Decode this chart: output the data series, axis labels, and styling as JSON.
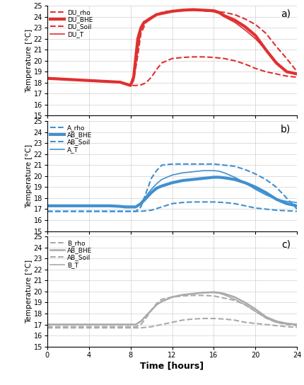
{
  "xlabel": "Time [hours]",
  "ylabel": "Temperature [°C]",
  "xlim": [
    0,
    24
  ],
  "ylim": [
    15,
    25
  ],
  "xticks": [
    0,
    4,
    8,
    12,
    16,
    20,
    24
  ],
  "yticks": [
    15,
    16,
    17,
    18,
    19,
    20,
    21,
    22,
    23,
    24,
    25
  ],
  "red_color": "#e03030",
  "blue_color": "#4090d0",
  "gray_color": "#aaaaaa",
  "panel_a": {
    "DU_rho": {
      "x": [
        0,
        1,
        2,
        3,
        4,
        5,
        6,
        7,
        7.5,
        8,
        8.3,
        8.7,
        9.0,
        9.5,
        10,
        10.5,
        11,
        11.5,
        12,
        13,
        14,
        15,
        16,
        16.5,
        17,
        18,
        19,
        20,
        21,
        22,
        23,
        24
      ],
      "y": [
        18.4,
        18.35,
        18.3,
        18.25,
        18.2,
        18.15,
        18.1,
        18.05,
        17.9,
        17.75,
        18.2,
        20.5,
        22.5,
        23.5,
        23.9,
        24.2,
        24.4,
        24.5,
        24.5,
        24.55,
        24.6,
        24.55,
        24.5,
        24.45,
        24.4,
        24.2,
        23.8,
        23.3,
        22.5,
        21.3,
        20.2,
        19.0
      ],
      "linestyle": "--",
      "linewidth": 1.5
    },
    "DU_BHE": {
      "x": [
        0,
        1,
        2,
        3,
        4,
        5,
        6,
        7,
        7.5,
        8,
        8.3,
        8.7,
        9.0,
        9.3,
        9.7,
        10,
        10.5,
        11,
        11.5,
        12,
        13,
        14,
        15,
        16,
        16.5,
        17,
        18,
        19,
        20,
        21,
        22,
        23,
        24
      ],
      "y": [
        18.4,
        18.35,
        18.3,
        18.25,
        18.2,
        18.15,
        18.1,
        18.05,
        17.9,
        17.75,
        18.5,
        22.0,
        23.0,
        23.5,
        23.7,
        23.9,
        24.2,
        24.3,
        24.4,
        24.5,
        24.6,
        24.65,
        24.6,
        24.55,
        24.4,
        24.1,
        23.7,
        23.1,
        22.3,
        21.0,
        19.8,
        19.0,
        18.8
      ],
      "linestyle": "-",
      "linewidth": 3.0
    },
    "DU_Soil": {
      "x": [
        0,
        1,
        2,
        3,
        4,
        5,
        6,
        7,
        7.5,
        8,
        8.5,
        9,
        9.5,
        10,
        10.5,
        11,
        12,
        13,
        14,
        15,
        16,
        17,
        18,
        19,
        20,
        21,
        22,
        23,
        24
      ],
      "y": [
        18.4,
        18.35,
        18.3,
        18.25,
        18.2,
        18.15,
        18.1,
        18.05,
        17.9,
        17.75,
        17.75,
        17.8,
        18.0,
        18.5,
        19.2,
        19.8,
        20.2,
        20.3,
        20.35,
        20.35,
        20.3,
        20.2,
        20.0,
        19.7,
        19.3,
        19.0,
        18.8,
        18.6,
        18.5
      ],
      "linestyle": "--",
      "linewidth": 1.5
    },
    "DU_T": {
      "x": [
        0,
        1,
        2,
        3,
        4,
        5,
        6,
        7,
        7.5,
        8,
        8.3,
        8.7,
        9.0,
        9.5,
        10,
        10.5,
        11,
        11.5,
        12,
        13,
        14,
        15,
        16,
        16.5,
        17,
        18,
        19,
        20,
        21,
        22,
        23,
        24
      ],
      "y": [
        18.4,
        18.35,
        18.3,
        18.25,
        18.2,
        18.15,
        18.1,
        18.05,
        17.9,
        17.75,
        18.3,
        21.0,
        22.8,
        23.7,
        24.0,
        24.2,
        24.35,
        24.45,
        24.5,
        24.55,
        24.6,
        24.55,
        24.45,
        24.3,
        24.0,
        23.5,
        22.8,
        22.0,
        21.0,
        19.9,
        19.0,
        18.8
      ],
      "linestyle": "-",
      "linewidth": 1.2
    },
    "legend_labels": [
      "DU_rho",
      "DU_BHE",
      "DU_Soil",
      "DU_T"
    ]
  },
  "panel_b": {
    "A_rho": {
      "x": [
        0,
        1,
        2,
        3,
        4,
        5,
        6,
        7,
        7.5,
        8,
        8.5,
        9,
        9.5,
        10,
        10.5,
        11,
        12,
        13,
        14,
        15,
        16,
        16.5,
        17,
        18,
        19,
        20,
        21,
        22,
        23,
        24
      ],
      "y": [
        16.8,
        16.8,
        16.8,
        16.8,
        16.8,
        16.8,
        16.8,
        16.8,
        16.8,
        16.8,
        16.8,
        17.2,
        18.5,
        19.8,
        20.5,
        21.0,
        21.1,
        21.1,
        21.1,
        21.1,
        21.1,
        21.05,
        21.0,
        20.9,
        20.6,
        20.2,
        19.7,
        19.0,
        18.0,
        17.0
      ],
      "linestyle": "--",
      "linewidth": 1.5
    },
    "AB_BHE": {
      "x": [
        0,
        1,
        2,
        3,
        4,
        5,
        6,
        7,
        7.5,
        8,
        8.5,
        9,
        9.5,
        10,
        10.5,
        11,
        12,
        13,
        14,
        15,
        16,
        16.5,
        17,
        18,
        19,
        20,
        21,
        22,
        23,
        24
      ],
      "y": [
        17.3,
        17.3,
        17.3,
        17.3,
        17.3,
        17.3,
        17.3,
        17.25,
        17.2,
        17.2,
        17.2,
        17.5,
        18.0,
        18.5,
        18.9,
        19.1,
        19.4,
        19.6,
        19.7,
        19.8,
        19.9,
        19.9,
        19.85,
        19.7,
        19.4,
        19.0,
        18.5,
        17.9,
        17.5,
        17.3
      ],
      "linestyle": "-",
      "linewidth": 3.0
    },
    "AB_Soil": {
      "x": [
        0,
        1,
        2,
        3,
        4,
        5,
        6,
        7,
        7.5,
        8,
        8.5,
        9,
        10,
        11,
        12,
        13,
        14,
        15,
        16,
        17,
        18,
        19,
        20,
        21,
        22,
        23,
        24
      ],
      "y": [
        16.8,
        16.8,
        16.8,
        16.8,
        16.8,
        16.8,
        16.8,
        16.8,
        16.8,
        16.8,
        16.8,
        16.8,
        16.9,
        17.2,
        17.5,
        17.6,
        17.65,
        17.65,
        17.65,
        17.6,
        17.5,
        17.3,
        17.1,
        17.0,
        16.9,
        16.85,
        16.8
      ],
      "linestyle": "--",
      "linewidth": 1.5
    },
    "A_T": {
      "x": [
        0,
        1,
        2,
        3,
        4,
        5,
        6,
        7,
        7.5,
        8,
        8.5,
        9,
        9.5,
        10,
        10.5,
        11,
        12,
        13,
        14,
        15,
        16,
        16.5,
        17,
        18,
        19,
        20,
        21,
        22,
        23,
        24
      ],
      "y": [
        17.3,
        17.3,
        17.3,
        17.3,
        17.3,
        17.3,
        17.3,
        17.25,
        17.2,
        17.2,
        17.2,
        17.6,
        18.2,
        18.8,
        19.3,
        19.7,
        20.1,
        20.3,
        20.4,
        20.5,
        20.5,
        20.45,
        20.3,
        19.9,
        19.4,
        18.8,
        18.3,
        17.9,
        17.7,
        17.6
      ],
      "linestyle": "-",
      "linewidth": 1.2
    },
    "legend_labels": [
      "A_rho",
      "AB_BHE",
      "AB_Soil",
      "A_T"
    ]
  },
  "panel_c": {
    "B_rho": {
      "x": [
        0,
        1,
        2,
        3,
        4,
        5,
        6,
        7,
        7.5,
        8,
        8.5,
        9,
        9.5,
        10,
        10.5,
        11,
        12,
        13,
        14,
        15,
        16,
        16.5,
        17,
        18,
        19,
        20,
        21,
        22,
        23,
        24
      ],
      "y": [
        16.8,
        16.8,
        16.8,
        16.8,
        16.8,
        16.8,
        16.8,
        16.8,
        16.8,
        16.8,
        16.8,
        17.0,
        17.6,
        18.3,
        18.9,
        19.3,
        19.5,
        19.6,
        19.65,
        19.65,
        19.6,
        19.5,
        19.4,
        19.2,
        18.8,
        18.2,
        17.6,
        17.2,
        17.0,
        16.9
      ],
      "linestyle": "--",
      "linewidth": 1.5
    },
    "AB_BHE": {
      "x": [
        0,
        1,
        2,
        3,
        4,
        5,
        6,
        7,
        7.5,
        8,
        8.5,
        9,
        9.5,
        10,
        10.5,
        11,
        12,
        13,
        14,
        15,
        16,
        16.5,
        17,
        18,
        19,
        20,
        21,
        22,
        23,
        24
      ],
      "y": [
        17.0,
        17.0,
        17.0,
        17.0,
        17.0,
        17.0,
        17.0,
        17.0,
        17.0,
        17.0,
        17.0,
        17.3,
        17.8,
        18.3,
        18.8,
        19.1,
        19.5,
        19.7,
        19.8,
        19.9,
        19.95,
        19.9,
        19.8,
        19.5,
        19.0,
        18.4,
        17.7,
        17.3,
        17.1,
        17.0
      ],
      "linestyle": "-",
      "linewidth": 1.8
    },
    "AB_Soil": {
      "x": [
        0,
        1,
        2,
        3,
        4,
        5,
        6,
        7,
        7.5,
        8,
        8.5,
        9,
        10,
        11,
        12,
        13,
        14,
        15,
        16,
        17,
        18,
        19,
        20,
        21,
        22,
        23,
        24
      ],
      "y": [
        16.7,
        16.7,
        16.7,
        16.7,
        16.7,
        16.7,
        16.7,
        16.7,
        16.7,
        16.7,
        16.7,
        16.7,
        16.8,
        17.0,
        17.2,
        17.4,
        17.5,
        17.55,
        17.55,
        17.5,
        17.4,
        17.2,
        17.1,
        17.0,
        16.9,
        16.8,
        16.75
      ],
      "linestyle": "--",
      "linewidth": 1.5
    },
    "B_T": {
      "x": [
        0,
        1,
        2,
        3,
        4,
        5,
        6,
        7,
        7.5,
        8,
        8.5,
        9,
        9.5,
        10,
        10.5,
        11,
        12,
        13,
        14,
        15,
        16,
        16.5,
        17,
        18,
        19,
        20,
        21,
        22,
        23,
        24
      ],
      "y": [
        17.0,
        17.0,
        17.0,
        17.0,
        17.0,
        17.0,
        17.0,
        17.0,
        17.0,
        17.0,
        17.0,
        17.3,
        17.8,
        18.3,
        18.8,
        19.1,
        19.5,
        19.7,
        19.8,
        19.9,
        19.9,
        19.85,
        19.7,
        19.3,
        18.8,
        18.2,
        17.6,
        17.2,
        17.05,
        17.0
      ],
      "linestyle": "-",
      "linewidth": 1.2
    },
    "legend_labels": [
      "B_rho",
      "AB_BHE",
      "AB_Soil",
      "B_T"
    ]
  }
}
